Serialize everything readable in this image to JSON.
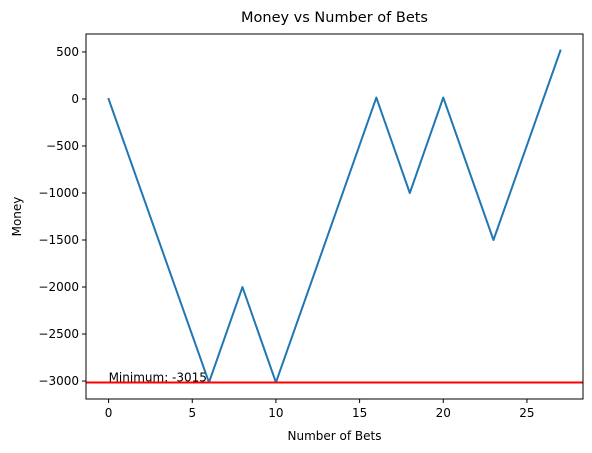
{
  "chart_data": {
    "type": "line",
    "title": "Money vs Number of Bets",
    "xlabel": "Number of Bets",
    "ylabel": "Money",
    "xlim": [
      -1.35,
      28.35
    ],
    "ylim": [
      -3191,
      691
    ],
    "xticks": [
      0,
      5,
      10,
      15,
      20,
      25
    ],
    "yticks": [
      -3000,
      -2500,
      -2000,
      -1500,
      -1000,
      -500,
      0,
      500
    ],
    "grid": false,
    "series": [
      {
        "color": "#1f77b4",
        "x": [
          0,
          6,
          8,
          10,
          16,
          18,
          20,
          23,
          27
        ],
        "y": [
          0,
          -3015,
          -2000,
          -3015,
          15,
          -1000,
          15,
          -1500,
          515
        ]
      }
    ],
    "hline": {
      "y": -3015,
      "color": "#ff0000"
    },
    "annotation": {
      "text": "Minimum: -3015",
      "x": 0,
      "y": -3015
    }
  }
}
